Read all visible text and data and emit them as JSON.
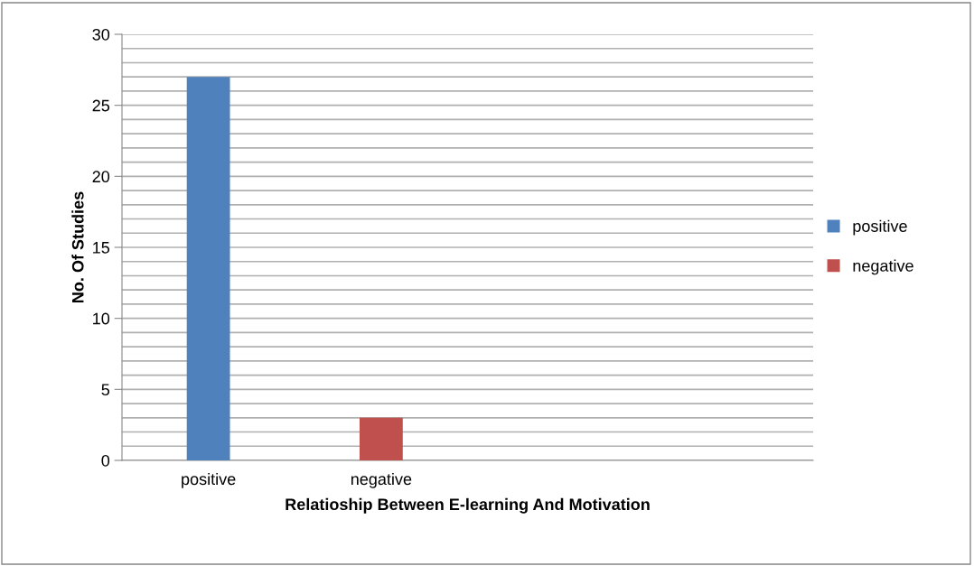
{
  "chart_data": {
    "type": "bar",
    "xlabel": "Relatioship Between E-learning And Motivation",
    "ylabel": "No. Of Studies",
    "categories": [
      "positive",
      "negative",
      null,
      null
    ],
    "series": [
      {
        "name": "positive",
        "color": "#4f81bd",
        "values": [
          27,
          null,
          null,
          null
        ]
      },
      {
        "name": "negative",
        "color": "#c0504d",
        "values": [
          null,
          3,
          null,
          null
        ]
      }
    ],
    "ylim": [
      0,
      30
    ],
    "yticks": [
      0,
      {
        "value": 1,
        "label": null
      },
      {
        "value": 2,
        "label": null
      },
      {
        "value": 3,
        "label": null
      },
      {
        "value": 4,
        "label": null
      },
      5,
      {
        "value": 6,
        "label": null
      },
      {
        "value": 7,
        "label": null
      },
      {
        "value": 8,
        "label": null
      },
      {
        "value": 9,
        "label": null
      },
      10,
      {
        "value": 11,
        "label": null
      },
      {
        "value": 12,
        "label": null
      },
      {
        "value": 13,
        "label": null
      },
      {
        "value": 14,
        "label": null
      },
      15,
      {
        "value": 16,
        "label": null
      },
      {
        "value": 17,
        "label": null
      },
      {
        "value": 18,
        "label": null
      },
      {
        "value": 19,
        "label": null
      },
      20,
      {
        "value": 21,
        "label": null
      },
      {
        "value": 22,
        "label": null
      },
      {
        "value": 23,
        "label": null
      },
      {
        "value": 24,
        "label": null
      },
      25,
      {
        "value": 26,
        "label": null
      },
      {
        "value": 27,
        "label": null
      },
      {
        "value": 28,
        "label": null
      },
      {
        "value": 29,
        "label": null
      },
      30
    ],
    "grid": "y",
    "legend": "right"
  }
}
